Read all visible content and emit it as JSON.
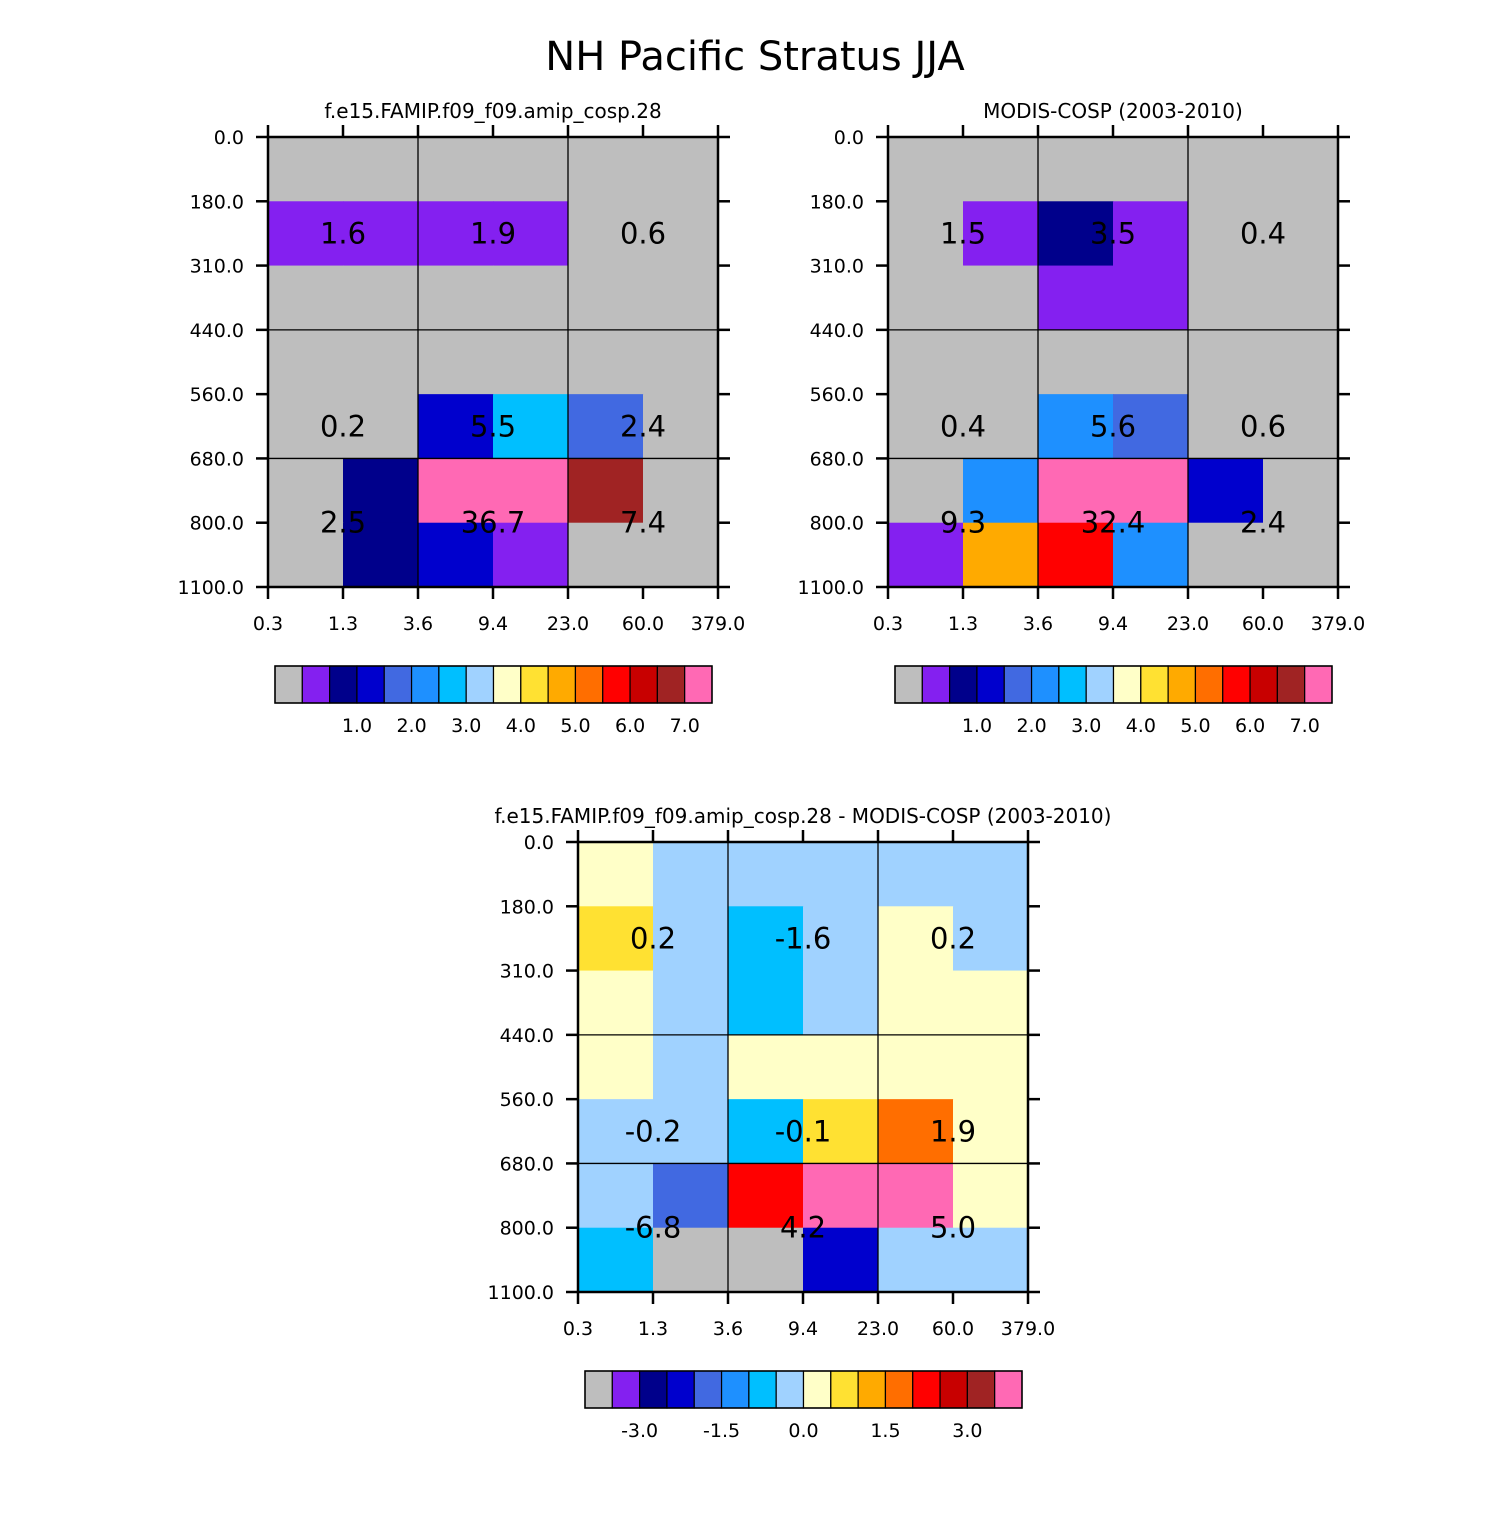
{
  "title": "NH Pacific Stratus JJA",
  "colorbar_palette": [
    "#BEBEBE",
    "#8420F0",
    "#00008B",
    "#0000CD",
    "#4169E1",
    "#1E90FF",
    "#00BFFF",
    "#A0D2FF",
    "#FFFFC8",
    "#FFE132",
    "#FFAA00",
    "#FF6E00",
    "#FF0000",
    "#C80000",
    "#A02323",
    "#FF69B4"
  ],
  "chart_data": [
    {
      "id": "model",
      "type": "heatmap",
      "title": "f.e15.FAMIP.f09_f09.amip_cosp.28",
      "x_ticks": [
        "0.3",
        "1.3",
        "3.6",
        "9.4",
        "23.0",
        "60.0",
        "379.0"
      ],
      "y_ticks": [
        "0.0",
        "180.0",
        "310.0",
        "440.0",
        "560.0",
        "680.0",
        "800.0",
        "1100.0"
      ],
      "xlabel": "",
      "ylabel": "",
      "color_index": [
        [
          0,
          0,
          0,
          0,
          0,
          0
        ],
        [
          1,
          1,
          1,
          1,
          0,
          0
        ],
        [
          0,
          0,
          0,
          0,
          0,
          0
        ],
        [
          0,
          0,
          0,
          0,
          0,
          0
        ],
        [
          0,
          0,
          3,
          6,
          4,
          0
        ],
        [
          0,
          2,
          15,
          15,
          14,
          0
        ],
        [
          0,
          2,
          3,
          1,
          0,
          0
        ]
      ],
      "group_values": [
        [
          "1.6",
          "1.9",
          "0.6"
        ],
        [
          "0.2",
          "5.5",
          "2.4"
        ],
        [
          "2.5",
          "36.7",
          "7.4"
        ]
      ],
      "colorbar_labels": [
        "1.0",
        "2.0",
        "3.0",
        "4.0",
        "5.0",
        "6.0",
        "7.0"
      ]
    },
    {
      "id": "obs",
      "type": "heatmap",
      "title": "MODIS-COSP (2003-2010)",
      "x_ticks": [
        "0.3",
        "1.3",
        "3.6",
        "9.4",
        "23.0",
        "60.0",
        "379.0"
      ],
      "y_ticks": [
        "0.0",
        "180.0",
        "310.0",
        "440.0",
        "560.0",
        "680.0",
        "800.0",
        "1100.0"
      ],
      "xlabel": "",
      "ylabel": "",
      "color_index": [
        [
          0,
          0,
          0,
          0,
          0,
          0
        ],
        [
          0,
          1,
          2,
          1,
          0,
          0
        ],
        [
          0,
          0,
          1,
          1,
          0,
          0
        ],
        [
          0,
          0,
          0,
          0,
          0,
          0
        ],
        [
          0,
          0,
          5,
          4,
          0,
          0
        ],
        [
          0,
          5,
          15,
          15,
          3,
          0
        ],
        [
          1,
          10,
          12,
          5,
          0,
          0
        ]
      ],
      "group_values": [
        [
          "1.5",
          "3.5",
          "0.4"
        ],
        [
          "0.4",
          "5.6",
          "0.6"
        ],
        [
          "9.3",
          "32.4",
          "2.4"
        ]
      ],
      "colorbar_labels": [
        "1.0",
        "2.0",
        "3.0",
        "4.0",
        "5.0",
        "6.0",
        "7.0"
      ]
    },
    {
      "id": "diff",
      "type": "heatmap",
      "title": "f.e15.FAMIP.f09_f09.amip_cosp.28 - MODIS-COSP (2003-2010)",
      "x_ticks": [
        "0.3",
        "1.3",
        "3.6",
        "9.4",
        "23.0",
        "60.0",
        "379.0"
      ],
      "y_ticks": [
        "0.0",
        "180.0",
        "310.0",
        "440.0",
        "560.0",
        "680.0",
        "800.0",
        "1100.0"
      ],
      "xlabel": "",
      "ylabel": "",
      "color_index": [
        [
          8,
          7,
          7,
          7,
          7,
          7
        ],
        [
          9,
          7,
          6,
          7,
          8,
          7
        ],
        [
          8,
          7,
          6,
          7,
          8,
          8
        ],
        [
          8,
          7,
          8,
          8,
          8,
          8
        ],
        [
          7,
          7,
          6,
          9,
          11,
          8
        ],
        [
          7,
          4,
          12,
          15,
          15,
          8
        ],
        [
          6,
          0,
          0,
          3,
          7,
          7
        ]
      ],
      "group_values": [
        [
          "0.2",
          "-1.6",
          "0.2"
        ],
        [
          "-0.2",
          "-0.1",
          "1.9"
        ],
        [
          "-6.8",
          "4.2",
          "5.0"
        ]
      ],
      "colorbar_labels": [
        "-3.0",
        "-1.5",
        "0.0",
        "1.5",
        "3.0"
      ]
    }
  ]
}
